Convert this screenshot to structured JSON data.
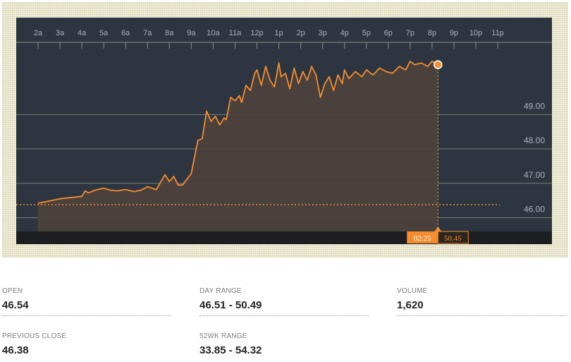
{
  "chart_data": {
    "type": "area",
    "hours": [
      "2a",
      "3a",
      "4a",
      "5a",
      "6a",
      "7a",
      "8a",
      "9a",
      "10a",
      "11a",
      "12p",
      "1p",
      "2p",
      "3p",
      "4p",
      "5p",
      "6p",
      "7p",
      "8p",
      "9p",
      "10p",
      "11p"
    ],
    "y_ticks": [
      "49.00",
      "48.00",
      "47.00",
      "46.00"
    ],
    "y_tick_values": [
      49,
      48,
      47,
      46
    ],
    "ylim": [
      45.6,
      51.1
    ],
    "xlim": [
      1.0,
      24.0
    ],
    "previous_close_line": 46.38,
    "series": [
      {
        "x": [
          1.0,
          2.0,
          3.0,
          3.15,
          3.3,
          3.6,
          4.0,
          4.3,
          4.6,
          5.0,
          5.4,
          5.7,
          6.0,
          6.4,
          6.8,
          7.0,
          7.2,
          7.4,
          7.6,
          7.8,
          8.0,
          8.3,
          8.5,
          8.7,
          8.9,
          9.1,
          9.3,
          9.5,
          9.6,
          9.8,
          10.0,
          10.2,
          10.3,
          10.5,
          10.7,
          10.9,
          11.0,
          11.2,
          11.4,
          11.6,
          11.8,
          12.0,
          12.1,
          12.3,
          12.5,
          12.7,
          12.9,
          13.1,
          13.3,
          13.5,
          13.7,
          13.9,
          14.1,
          14.3,
          14.5,
          14.7,
          14.9,
          15.0,
          15.2,
          15.5,
          15.8,
          16.0,
          16.3,
          16.6,
          16.9,
          17.2,
          17.5,
          17.8,
          18.0,
          18.2,
          18.5,
          18.8,
          19.0,
          19.27
        ],
        "y": [
          46.42,
          46.55,
          46.62,
          46.78,
          46.72,
          46.8,
          46.86,
          46.8,
          46.78,
          46.82,
          46.76,
          46.8,
          46.9,
          46.82,
          47.25,
          47.05,
          47.2,
          46.95,
          46.95,
          47.12,
          47.28,
          48.25,
          48.3,
          49.1,
          48.8,
          48.95,
          48.7,
          48.9,
          48.85,
          49.5,
          49.4,
          49.55,
          49.35,
          49.85,
          49.7,
          50.2,
          50.3,
          49.85,
          50.4,
          50.0,
          49.8,
          50.5,
          50.1,
          50.2,
          49.75,
          50.35,
          49.9,
          50.25,
          50.0,
          50.4,
          50.15,
          49.5,
          49.9,
          50.1,
          49.7,
          50.15,
          49.9,
          50.3,
          50.05,
          50.25,
          50.1,
          50.3,
          50.15,
          50.35,
          50.25,
          50.2,
          50.4,
          50.3,
          50.55,
          50.45,
          50.5,
          50.4,
          50.55,
          50.45
        ]
      }
    ],
    "cursor": {
      "time": "02:25",
      "value": "50.45"
    }
  },
  "stats": {
    "open": {
      "label": "OPEN",
      "value": "46.54"
    },
    "day_range": {
      "label": "DAY RANGE",
      "value": "46.51 - 50.49"
    },
    "volume": {
      "label": "VOLUME",
      "value": "1,620"
    },
    "previous_close": {
      "label": "PREVIOUS CLOSE",
      "value": "46.38"
    },
    "wk52_range": {
      "label": "52WK RANGE",
      "value": "33.85 - 54.32"
    }
  },
  "colors": {
    "line": "#f58c2e",
    "area": "#4d423c",
    "panel": "#2d3640",
    "grid": "#7c7f72",
    "bottom_bar": "#1c1e22"
  }
}
